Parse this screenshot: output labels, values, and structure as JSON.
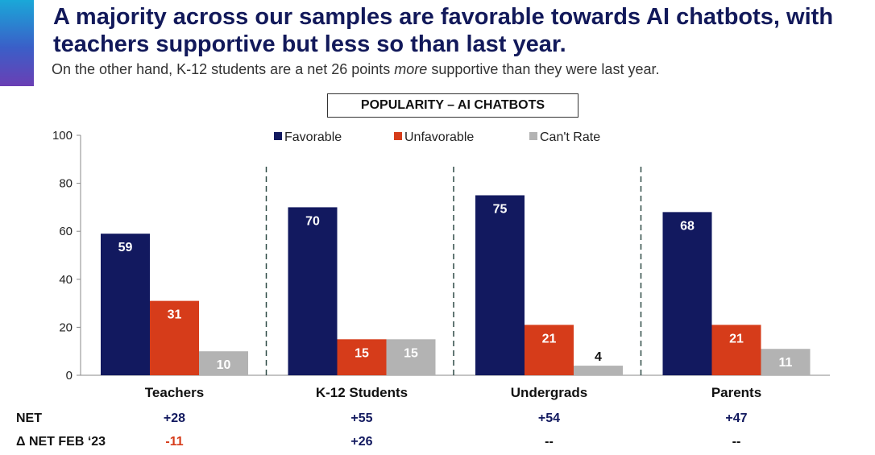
{
  "header": {
    "title": "A majority across our samples are favorable towards AI chatbots, with teachers supportive but less so than last year.",
    "subtitle_pre": "On the other hand, K-12 students are a net 26 points ",
    "subtitle_em": "more",
    "subtitle_post": " supportive than they were last year."
  },
  "colors": {
    "favorable": "#12195f",
    "unfavorable": "#d63c1a",
    "cant_rate": "#b3b3b3",
    "positive_text": "#12195f",
    "negative_text": "#d63c1a"
  },
  "chart_data": {
    "type": "bar",
    "title": "POPULARITY – AI CHATBOTS",
    "categories": [
      "Teachers",
      "K-12 Students",
      "Undergrads",
      "Parents"
    ],
    "series": [
      {
        "name": "Favorable",
        "values": [
          59,
          70,
          75,
          68
        ]
      },
      {
        "name": "Unfavorable",
        "values": [
          31,
          15,
          21,
          21
        ]
      },
      {
        "name": "Can't Rate",
        "values": [
          10,
          15,
          4,
          11
        ]
      }
    ],
    "ylim": [
      0,
      100
    ],
    "yticks": [
      0,
      20,
      40,
      60,
      80,
      100
    ],
    "xlabel": "",
    "ylabel": "",
    "legend_position": "top"
  },
  "table": {
    "net_label": "NET",
    "net_values": [
      "+28",
      "+55",
      "+54",
      "+47"
    ],
    "delta_label": "Δ NET FEB ‘23",
    "delta_values": [
      "-11",
      "+26",
      "--",
      "--"
    ]
  }
}
